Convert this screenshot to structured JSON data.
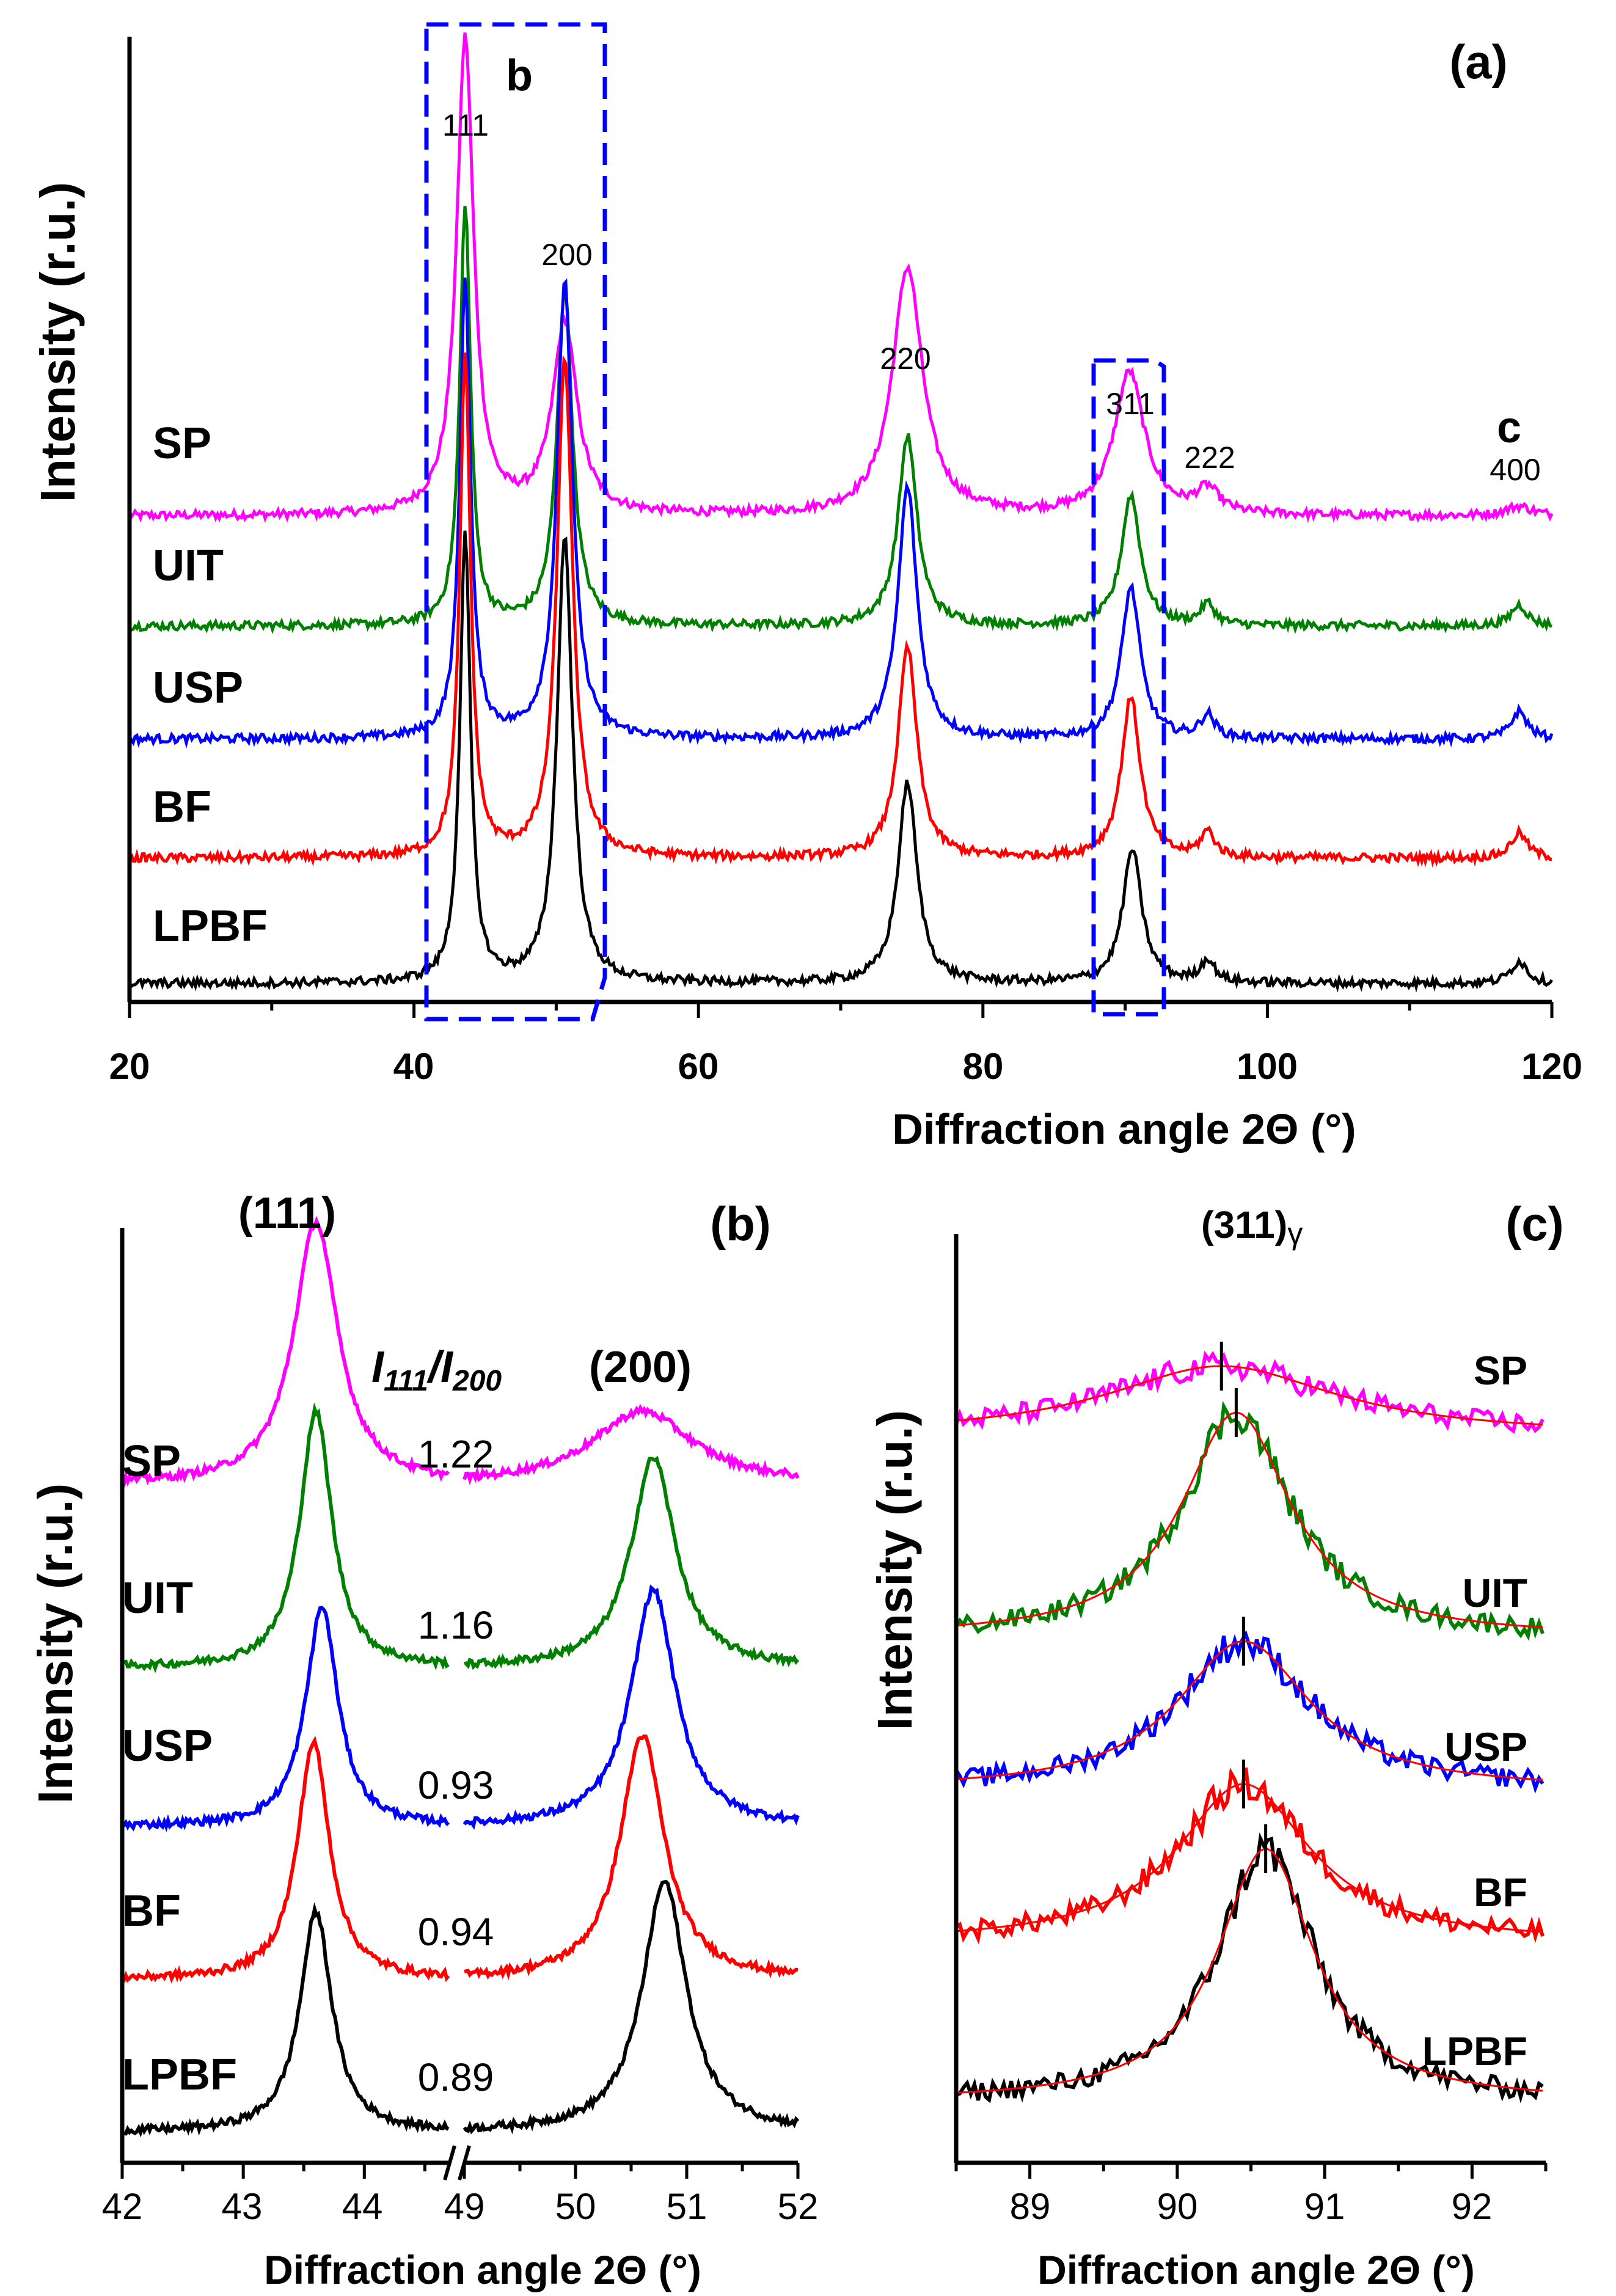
{
  "colors": {
    "SP": "#ff00ff",
    "UIT": "#008000",
    "USP": "#0000ff",
    "BF": "#ff0000",
    "LPBF": "#000000",
    "box": "#0000ff",
    "fit": "#ff0000"
  },
  "chart_data": [
    {
      "id": "a",
      "type": "line",
      "panel_label": "(a)",
      "xlabel": "Diffraction angle 2Θ (°)",
      "ylabel": "Intensity (r.u.)",
      "xlim": [
        20,
        120
      ],
      "xticks": [
        "20",
        "40",
        "60",
        "80",
        "100",
        "120"
      ],
      "grid": false,
      "series": [
        {
          "name": "SP",
          "peaks": [
            [
              43.6,
              1.0
            ],
            [
              50.6,
              0.4
            ],
            [
              74.7,
              0.52
            ],
            [
              90.3,
              0.3
            ],
            [
              95.8,
              0.05
            ],
            [
              117.7,
              0.02
            ]
          ]
        },
        {
          "name": "UIT",
          "peaks": [
            [
              43.6,
              1.0
            ],
            [
              50.6,
              0.8
            ],
            [
              74.7,
              0.45
            ],
            [
              90.4,
              0.31
            ],
            [
              95.8,
              0.05
            ],
            [
              117.7,
              0.05
            ]
          ]
        },
        {
          "name": "USP",
          "peaks": [
            [
              43.6,
              1.0
            ],
            [
              50.6,
              1.0
            ],
            [
              74.7,
              0.55
            ],
            [
              90.4,
              0.33
            ],
            [
              95.8,
              0.05
            ],
            [
              117.7,
              0.06
            ]
          ]
        },
        {
          "name": "BF",
          "peaks": [
            [
              43.6,
              1.0
            ],
            [
              50.6,
              1.0
            ],
            [
              74.7,
              0.42
            ],
            [
              90.4,
              0.32
            ],
            [
              95.8,
              0.05
            ],
            [
              117.7,
              0.05
            ]
          ]
        },
        {
          "name": "LPBF",
          "peaks": [
            [
              43.6,
              1.0
            ],
            [
              50.6,
              1.0
            ],
            [
              74.7,
              0.45
            ],
            [
              90.5,
              0.3
            ],
            [
              95.8,
              0.05
            ],
            [
              117.7,
              0.05
            ]
          ]
        }
      ],
      "annotations": [
        {
          "text": "111",
          "x": 43.6
        },
        {
          "text": "200",
          "x": 50.6
        },
        {
          "text": "220",
          "x": 74.7
        },
        {
          "text": "311",
          "x": 90.4
        },
        {
          "text": "222",
          "x": 95.8
        },
        {
          "text": "400",
          "x": 117.7
        }
      ],
      "box_labels": {
        "b": "b",
        "c": "c"
      }
    },
    {
      "id": "b",
      "type": "line",
      "panel_label": "(b)",
      "xlabel": "Diffraction angle 2Θ (°)",
      "ylabel": "Intensity (r.u.)",
      "xlim_left": [
        42,
        44.7
      ],
      "xlim_right": [
        49,
        52
      ],
      "xticks": [
        "42",
        "43",
        "44",
        "49",
        "50",
        "51",
        "52"
      ],
      "peak_labels": [
        "(111)",
        "(200)"
      ],
      "ratio_header": {
        "base1": "I",
        "sub1": "111",
        "slash": "/",
        "base2": "I",
        "sub2": "200"
      },
      "series": [
        {
          "name": "SP",
          "ratio": "1.22",
          "p111": [
            43.6,
            1.0
          ],
          "p200": [
            50.6,
            0.28
          ]
        },
        {
          "name": "UIT",
          "ratio": "1.16",
          "p111": [
            43.6,
            1.0
          ],
          "p200": [
            50.7,
            0.82
          ]
        },
        {
          "name": "USP",
          "ratio": "0.93",
          "p111": [
            43.65,
            0.9
          ],
          "p200": [
            50.7,
            0.97
          ]
        },
        {
          "name": "BF",
          "ratio": "0.94",
          "p111": [
            43.58,
            0.97
          ],
          "p200": [
            50.6,
            1.0
          ]
        },
        {
          "name": "LPBF",
          "ratio": "0.89",
          "p111": [
            43.6,
            0.88
          ],
          "p200": [
            50.8,
            1.0
          ]
        }
      ]
    },
    {
      "id": "c",
      "type": "line",
      "panel_label": "(c)",
      "title_main": "(311)",
      "title_sub": "γ",
      "xlabel": "Diffraction angle 2Θ (°)",
      "ylabel": "Intensity (r.u.)",
      "xlim": [
        88.5,
        92.5
      ],
      "xticks": [
        "89",
        "90",
        "91",
        "92"
      ],
      "series": [
        {
          "name": "SP",
          "center": 90.3,
          "width": 0.95,
          "amp": 0.3
        },
        {
          "name": "UIT",
          "center": 90.4,
          "width": 0.45,
          "amp": 0.8
        },
        {
          "name": "USP",
          "center": 90.45,
          "width": 0.55,
          "amp": 0.58
        },
        {
          "name": "BF",
          "center": 90.45,
          "width": 0.55,
          "amp": 0.65
        },
        {
          "name": "LPBF",
          "center": 90.6,
          "width": 0.4,
          "amp": 0.9
        }
      ]
    }
  ]
}
